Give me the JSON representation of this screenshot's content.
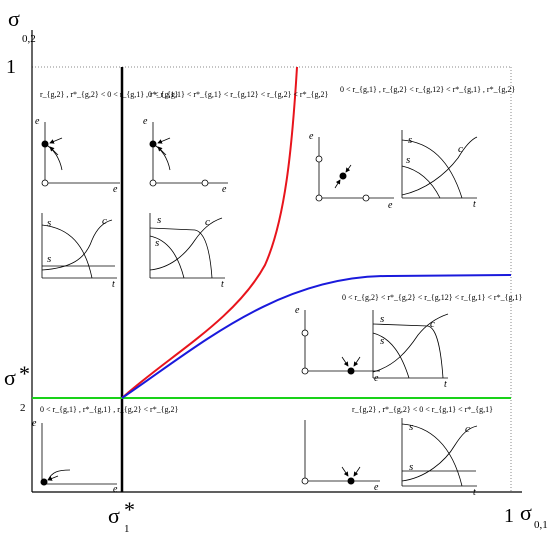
{
  "axes": {
    "y_axis": {
      "symbol": "σ",
      "subscript": "0,2",
      "top_value": "1"
    },
    "x_axis": {
      "symbol": "σ",
      "subscript": "0,1",
      "right_value": "1"
    },
    "y_threshold": {
      "symbol": "σ",
      "star": "*",
      "subscript": "2"
    },
    "x_threshold": {
      "symbol": "σ",
      "star": "*",
      "subscript": "1"
    }
  },
  "colors": {
    "red_curve": "#e8141c",
    "blue_curve": "#1a1adc",
    "green_line": "#19d219",
    "black": "#000000",
    "grid": "#888888"
  },
  "regions": [
    {
      "id": "left-upper",
      "condition": "r_{g,2} , r*_{g,2} < 0 < r_{g,1} , r*_{g,1}"
    },
    {
      "id": "middle-upper",
      "condition": "0 < r_{g,1} < r*_{g,1} < r_{g,12} < r_{g,2} < r*_{g,2}"
    },
    {
      "id": "right-upper",
      "condition": "0 < r_{g,1} , r_{g,2} < r_{g,12} < r*_{g,1} , r*_{g,2}"
    },
    {
      "id": "right-middle",
      "condition": "0 < r_{g,2} < r*_{g,2} < r_{g,12} < r_{g,1} < r*_{g,1}"
    },
    {
      "id": "left-lower",
      "condition": "0 < r_{g,1} , r*_{g,1} , r_{g,2} < r*_{g,2}"
    },
    {
      "id": "right-lower",
      "condition": "r_{g,2} , r*_{g,2} < 0 < r_{g,1} < r*_{g,1}"
    }
  ],
  "labels": {
    "e1": "e",
    "e2": "e",
    "s1": "s",
    "s2": "s",
    "c": "c",
    "t": "t",
    "sub1": "1",
    "sub2": "2"
  }
}
